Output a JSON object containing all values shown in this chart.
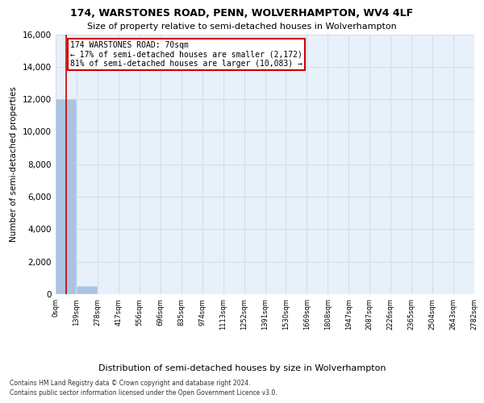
{
  "title": "174, WARSTONES ROAD, PENN, WOLVERHAMPTON, WV4 4LF",
  "subtitle": "Size of property relative to semi-detached houses in Wolverhampton",
  "xlabel_bottom": "Distribution of semi-detached houses by size in Wolverhampton",
  "ylabel": "Number of semi-detached properties",
  "footer1": "Contains HM Land Registry data © Crown copyright and database right 2024.",
  "footer2": "Contains public sector information licensed under the Open Government Licence v3.0.",
  "bin_edges": [
    0,
    139,
    278,
    417,
    556,
    696,
    835,
    974,
    1113,
    1252,
    1391,
    1530,
    1669,
    1808,
    1947,
    2087,
    2226,
    2365,
    2504,
    2643,
    2782
  ],
  "bar_values": [
    12000,
    500,
    10,
    5,
    3,
    2,
    1,
    1,
    1,
    0,
    1,
    0,
    0,
    0,
    0,
    0,
    0,
    0,
    0,
    0
  ],
  "bar_color": "#aac4e0",
  "grid_color": "#d0dff0",
  "background_color": "#e8f0fa",
  "property_size": 70,
  "annotation_text_line1": "174 WARSTONES ROAD: 70sqm",
  "annotation_text_line2": "← 17% of semi-detached houses are smaller (2,172)",
  "annotation_text_line3": "81% of semi-detached houses are larger (10,083) →",
  "ylim": [
    0,
    16000
  ],
  "red_line_color": "#cc0000",
  "annotation_box_color": "#cc0000",
  "title_fontsize": 9,
  "subtitle_fontsize": 8,
  "yticks": [
    0,
    2000,
    4000,
    6000,
    8000,
    10000,
    12000,
    14000,
    16000
  ]
}
